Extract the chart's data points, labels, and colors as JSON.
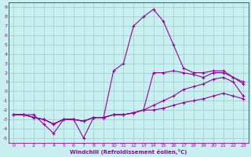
{
  "xlabel": "Windchill (Refroidissement éolien,°C)",
  "background_color": "#c8f0f0",
  "grid_color": "#a0c8c8",
  "line_color": "#990099",
  "xlim": [
    -0.5,
    23.5
  ],
  "ylim": [
    -5.5,
    9.5
  ],
  "xticks": [
    0,
    1,
    2,
    3,
    4,
    5,
    6,
    7,
    8,
    9,
    10,
    11,
    12,
    13,
    14,
    15,
    16,
    17,
    18,
    19,
    20,
    21,
    22,
    23
  ],
  "yticks": [
    -5,
    -4,
    -3,
    -2,
    -1,
    0,
    1,
    2,
    3,
    4,
    5,
    6,
    7,
    8,
    9
  ],
  "line1_x": [
    0,
    1,
    2,
    3,
    4,
    5,
    6,
    7,
    8,
    9,
    10,
    11,
    12,
    13,
    14,
    15,
    16,
    17,
    18,
    19,
    20,
    21,
    22,
    23
  ],
  "line1_y": [
    -2.5,
    -2.5,
    -2.5,
    -3.5,
    -4.5,
    -3.0,
    -3.0,
    -5.0,
    -2.8,
    -2.8,
    2.2,
    3.0,
    7.0,
    8.0,
    8.8,
    7.5,
    5.0,
    2.5,
    2.0,
    2.0,
    2.2,
    2.2,
    1.5,
    1.0
  ],
  "line2_x": [
    0,
    1,
    2,
    3,
    4,
    5,
    6,
    7,
    8,
    9,
    10,
    11,
    12,
    13,
    14,
    15,
    16,
    17,
    18,
    19,
    20,
    21,
    22,
    23
  ],
  "line2_y": [
    -2.5,
    -2.5,
    -2.8,
    -3.0,
    -3.5,
    -3.0,
    -3.0,
    -3.2,
    -2.8,
    -2.8,
    -2.5,
    -2.5,
    -2.3,
    -2.0,
    2.0,
    2.0,
    2.2,
    2.0,
    1.8,
    1.5,
    2.0,
    2.0,
    1.5,
    0.8
  ],
  "line3_x": [
    0,
    1,
    2,
    3,
    4,
    5,
    6,
    7,
    8,
    9,
    10,
    11,
    12,
    13,
    14,
    15,
    16,
    17,
    18,
    19,
    20,
    21,
    22,
    23
  ],
  "line3_y": [
    -2.5,
    -2.5,
    -2.8,
    -3.0,
    -3.5,
    -3.0,
    -3.0,
    -3.2,
    -2.8,
    -2.8,
    -2.5,
    -2.5,
    -2.3,
    -2.0,
    -1.5,
    -1.0,
    -0.5,
    0.2,
    0.5,
    0.8,
    1.3,
    1.5,
    1.0,
    -0.5
  ],
  "line4_x": [
    0,
    1,
    2,
    3,
    4,
    5,
    6,
    7,
    8,
    9,
    10,
    11,
    12,
    13,
    14,
    15,
    16,
    17,
    18,
    19,
    20,
    21,
    22,
    23
  ],
  "line4_y": [
    -2.5,
    -2.5,
    -2.8,
    -3.0,
    -3.5,
    -3.0,
    -3.0,
    -3.2,
    -2.8,
    -2.8,
    -2.5,
    -2.5,
    -2.3,
    -2.0,
    -2.0,
    -1.8,
    -1.5,
    -1.2,
    -1.0,
    -0.8,
    -0.5,
    -0.2,
    -0.5,
    -0.8
  ]
}
